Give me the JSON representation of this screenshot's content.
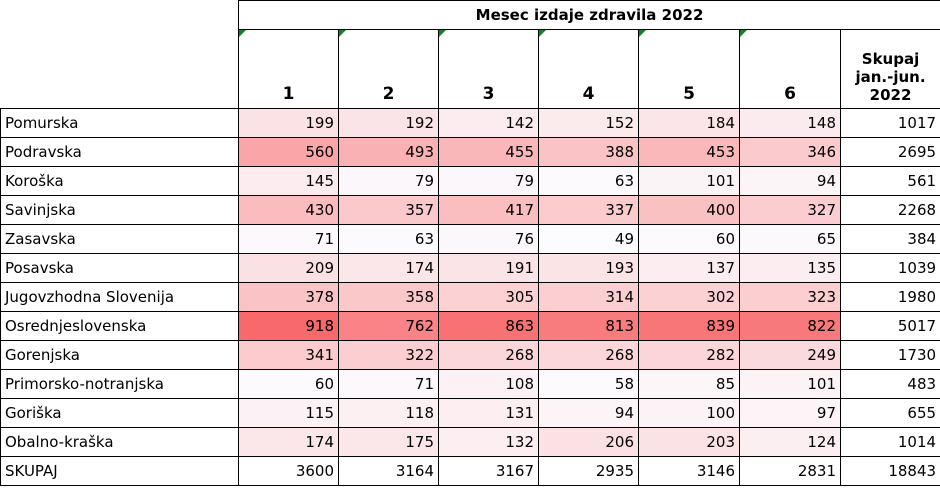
{
  "table": {
    "title": "Mesec izdaje zdravila 2022",
    "columns": [
      "1",
      "2",
      "3",
      "4",
      "5",
      "6",
      "Skupaj\njan.-jun.\n2022"
    ],
    "rows": [
      [
        "Pomurska",
        199,
        192,
        142,
        152,
        184,
        148,
        1017
      ],
      [
        "Podravska",
        560,
        493,
        455,
        388,
        453,
        346,
        2695
      ],
      [
        "Koroška",
        145,
        79,
        79,
        63,
        101,
        94,
        561
      ],
      [
        "Savinjska",
        430,
        357,
        417,
        337,
        400,
        327,
        2268
      ],
      [
        "Zasavska",
        71,
        63,
        76,
        49,
        60,
        65,
        384
      ],
      [
        "Posavska",
        209,
        174,
        191,
        193,
        137,
        135,
        1039
      ],
      [
        "Jugovzhodna Slovenija",
        378,
        358,
        305,
        314,
        302,
        323,
        1980
      ],
      [
        "Osrednjeslovenska",
        918,
        762,
        863,
        813,
        839,
        822,
        5017
      ],
      [
        "Gorenjska",
        341,
        322,
        268,
        268,
        282,
        249,
        1730
      ],
      [
        "Primorsko-notranjska",
        60,
        71,
        108,
        58,
        85,
        101,
        483
      ],
      [
        "Goriška",
        115,
        118,
        131,
        94,
        100,
        97,
        655
      ],
      [
        "Obalno-kraška",
        174,
        175,
        132,
        206,
        203,
        124,
        1014
      ]
    ],
    "total_row": [
      "SKUPAJ",
      3600,
      3164,
      3167,
      2935,
      3146,
      2831,
      18843
    ],
    "heat_color": "#f8696b"
  }
}
